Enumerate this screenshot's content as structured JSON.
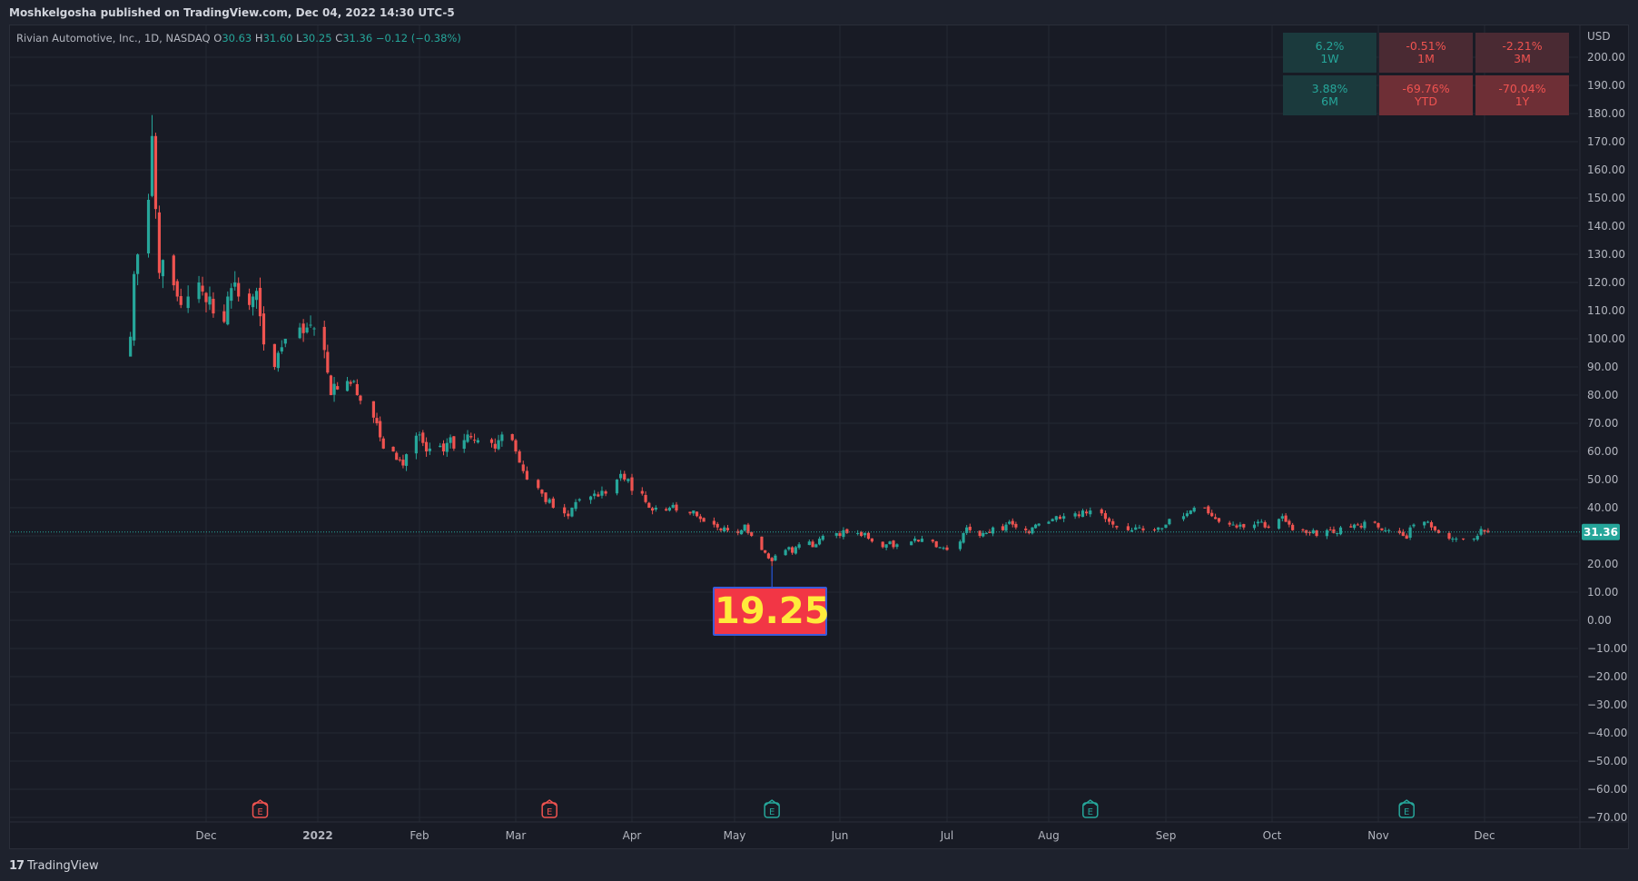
{
  "header": {
    "publisher_line": "Moshkelgosha published on TradingView.com, Dec 04, 2022 14:30 UTC-5"
  },
  "legend": {
    "symbol": "Rivian Automotive, Inc., 1D, NASDAQ",
    "o_label": "O",
    "o": "30.63",
    "h_label": "H",
    "h": "31.60",
    "l_label": "L",
    "l": "30.25",
    "c_label": "C",
    "c": "31.36",
    "change": "−0.12 (−0.38%)"
  },
  "performance": [
    {
      "value": "6.2%",
      "period": "1W",
      "state": "pos"
    },
    {
      "value": "-0.51%",
      "period": "1M",
      "state": "neg"
    },
    {
      "value": "-2.21%",
      "period": "3M",
      "state": "neg"
    },
    {
      "value": "3.88%",
      "period": "6M",
      "state": "pos"
    },
    {
      "value": "-69.76%",
      "period": "YTD",
      "state": "neg2"
    },
    {
      "value": "-70.04%",
      "period": "1Y",
      "state": "neg2"
    }
  ],
  "annotation": {
    "text": "19.25"
  },
  "footer": {
    "brand": "TradingView"
  },
  "colors": {
    "up": "#26a69a",
    "down": "#ef5350",
    "background": "#181b25",
    "grid": "#242833",
    "last_price_bg": "#26a69a",
    "annotation_bg": "#f23645",
    "annotation_text": "#ffeb3b"
  },
  "chart_data": {
    "type": "candlestick",
    "title": "Rivian Automotive, Inc., 1D, NASDAQ",
    "currency": "USD",
    "ylim": [
      -75,
      225
    ],
    "y_ticks": [
      200,
      190,
      180,
      170,
      160,
      150,
      140,
      130,
      120,
      110,
      100,
      90,
      80,
      70,
      60,
      50,
      40,
      30,
      20,
      10,
      0,
      -10,
      -20,
      -30,
      -40,
      -50,
      -60,
      -70
    ],
    "y_tick_labels": [
      "200.00",
      "190.00",
      "180.00",
      "170.00",
      "160.00",
      "150.00",
      "140.00",
      "130.00",
      "120.00",
      "110.00",
      "100.00",
      "90.00",
      "80.00",
      "70.00",
      "60.00",
      "50.00",
      "40.00",
      "30.00",
      "20.00",
      "10.00",
      "0.00",
      "−10.00",
      "−20.00",
      "−30.00",
      "−40.00",
      "−50.00",
      "−60.00",
      "−70.00"
    ],
    "x_labels": [
      "Dec",
      "2022",
      "Feb",
      "Mar",
      "Apr",
      "May",
      "Jun",
      "Jul",
      "Aug",
      "Sep",
      "Oct",
      "Nov",
      "Dec"
    ],
    "last_price": "31.36",
    "last_close": 31.36,
    "min_low": 19.25,
    "earnings_markers": [
      {
        "month": "Dec",
        "state": "down",
        "label": "E"
      },
      {
        "month": "Mar",
        "state": "down",
        "label": "E"
      },
      {
        "month": "May",
        "state": "up",
        "label": "E"
      },
      {
        "month": "Aug",
        "state": "up",
        "label": "E"
      },
      {
        "month": "Nov",
        "state": "up",
        "label": "E"
      }
    ],
    "close_path": [
      [
        "2021-11-10",
        100.73
      ],
      [
        "2021-11-11",
        122.99
      ],
      [
        "2021-11-12",
        129.95
      ],
      [
        "2021-11-15",
        149.36
      ],
      [
        "2021-11-16",
        172.01
      ],
      [
        "2021-11-17",
        146.07
      ],
      [
        "2021-11-18",
        123.38
      ],
      [
        "2021-11-19",
        128.0
      ],
      [
        "2021-11-22",
        119.0
      ],
      [
        "2021-11-23",
        115.0
      ],
      [
        "2021-11-24",
        112.0
      ],
      [
        "2021-11-26",
        115.0
      ],
      [
        "2021-11-29",
        120.0
      ],
      [
        "2021-11-30",
        116.78
      ],
      [
        "2021-12-01",
        113.0
      ],
      [
        "2021-12-02",
        115.0
      ],
      [
        "2021-12-03",
        109.0
      ],
      [
        "2021-12-06",
        106.0
      ],
      [
        "2021-12-07",
        115.0
      ],
      [
        "2021-12-08",
        118.0
      ],
      [
        "2021-12-09",
        120.0
      ],
      [
        "2021-12-10",
        115.0
      ],
      [
        "2021-12-13",
        112.0
      ],
      [
        "2021-12-14",
        115.0
      ],
      [
        "2021-12-15",
        117.0
      ],
      [
        "2021-12-16",
        108.0
      ],
      [
        "2021-12-17",
        98.0
      ],
      [
        "2021-12-20",
        90.0
      ],
      [
        "2021-12-21",
        95.0
      ],
      [
        "2021-12-22",
        97.0
      ],
      [
        "2021-12-23",
        100.0
      ],
      [
        "2021-12-27",
        104.0
      ],
      [
        "2021-12-28",
        102.0
      ],
      [
        "2021-12-29",
        104.0
      ],
      [
        "2021-12-30",
        105.0
      ],
      [
        "2021-12-31",
        103.69
      ],
      [
        "2022-01-03",
        96.0
      ],
      [
        "2022-01-04",
        88.0
      ],
      [
        "2022-01-05",
        80.0
      ],
      [
        "2022-01-06",
        84.0
      ],
      [
        "2022-01-07",
        82.0
      ],
      [
        "2022-01-10",
        85.0
      ],
      [
        "2022-01-11",
        84.0
      ],
      [
        "2022-01-12",
        85.0
      ],
      [
        "2022-01-13",
        80.0
      ],
      [
        "2022-01-14",
        78.0
      ],
      [
        "2022-01-18",
        72.0
      ],
      [
        "2022-01-19",
        70.0
      ],
      [
        "2022-01-20",
        65.0
      ],
      [
        "2022-01-21",
        61.0
      ],
      [
        "2022-01-24",
        60.0
      ],
      [
        "2022-01-25",
        57.0
      ],
      [
        "2022-01-26",
        57.0
      ],
      [
        "2022-01-27",
        55.0
      ],
      [
        "2022-01-28",
        59.0
      ],
      [
        "2022-01-31",
        65.57
      ],
      [
        "2022-02-01",
        66.0
      ],
      [
        "2022-02-02",
        63.0
      ],
      [
        "2022-02-03",
        60.0
      ],
      [
        "2022-02-04",
        61.0
      ],
      [
        "2022-02-07",
        62.0
      ],
      [
        "2022-02-08",
        60.0
      ],
      [
        "2022-02-09",
        63.0
      ],
      [
        "2022-02-10",
        65.0
      ],
      [
        "2022-02-11",
        61.0
      ],
      [
        "2022-02-14",
        64.0
      ],
      [
        "2022-02-15",
        66.0
      ],
      [
        "2022-02-16",
        65.0
      ],
      [
        "2022-02-17",
        64.0
      ],
      [
        "2022-02-18",
        64.0
      ],
      [
        "2022-02-22",
        63.0
      ],
      [
        "2022-02-23",
        61.0
      ],
      [
        "2022-02-24",
        64.0
      ],
      [
        "2022-02-25",
        66.0
      ],
      [
        "2022-02-28",
        64.0
      ],
      [
        "2022-03-01",
        60.0
      ],
      [
        "2022-03-02",
        56.0
      ],
      [
        "2022-03-03",
        53.0
      ],
      [
        "2022-03-04",
        50.0
      ],
      [
        "2022-03-07",
        47.0
      ],
      [
        "2022-03-08",
        45.0
      ],
      [
        "2022-03-09",
        42.0
      ],
      [
        "2022-03-10",
        43.0
      ],
      [
        "2022-03-11",
        40.0
      ],
      [
        "2022-03-14",
        38.0
      ],
      [
        "2022-03-15",
        37.0
      ],
      [
        "2022-03-16",
        40.0
      ],
      [
        "2022-03-17",
        42.0
      ],
      [
        "2022-03-18",
        43.0
      ],
      [
        "2022-03-21",
        44.0
      ],
      [
        "2022-03-22",
        45.0
      ],
      [
        "2022-03-23",
        44.0
      ],
      [
        "2022-03-24",
        46.0
      ],
      [
        "2022-03-25",
        45.0
      ],
      [
        "2022-03-28",
        50.0
      ],
      [
        "2022-03-29",
        52.0
      ],
      [
        "2022-03-30",
        50.0
      ],
      [
        "2022-03-31",
        50.24
      ],
      [
        "2022-04-01",
        46.0
      ],
      [
        "2022-04-04",
        45.0
      ],
      [
        "2022-04-05",
        42.0
      ],
      [
        "2022-04-06",
        40.0
      ],
      [
        "2022-04-07",
        39.0
      ],
      [
        "2022-04-08",
        40.0
      ],
      [
        "2022-04-11",
        39.0
      ],
      [
        "2022-04-12",
        40.0
      ],
      [
        "2022-04-13",
        41.0
      ],
      [
        "2022-04-14",
        39.0
      ],
      [
        "2022-04-18",
        38.0
      ],
      [
        "2022-04-19",
        39.0
      ],
      [
        "2022-04-20",
        37.0
      ],
      [
        "2022-04-21",
        36.0
      ],
      [
        "2022-04-22",
        35.0
      ],
      [
        "2022-04-25",
        34.0
      ],
      [
        "2022-04-26",
        33.0
      ],
      [
        "2022-04-27",
        32.0
      ],
      [
        "2022-04-28",
        33.0
      ],
      [
        "2022-04-29",
        32.0
      ],
      [
        "2022-05-02",
        31.0
      ],
      [
        "2022-05-03",
        32.0
      ],
      [
        "2022-05-04",
        34.0
      ],
      [
        "2022-05-05",
        31.0
      ],
      [
        "2022-05-06",
        30.0
      ],
      [
        "2022-05-09",
        25.0
      ],
      [
        "2022-05-10",
        24.0
      ],
      [
        "2022-05-11",
        22.0
      ],
      [
        "2022-05-12",
        21.0
      ],
      [
        "2022-05-13",
        23.0
      ],
      [
        "2022-05-16",
        25.0
      ],
      [
        "2022-05-17",
        26.0
      ],
      [
        "2022-05-18",
        24.0
      ],
      [
        "2022-05-19",
        26.0
      ],
      [
        "2022-05-20",
        27.0
      ],
      [
        "2022-05-23",
        28.0
      ],
      [
        "2022-05-24",
        26.0
      ],
      [
        "2022-05-25",
        27.0
      ],
      [
        "2022-05-26",
        29.0
      ],
      [
        "2022-05-27",
        30.0
      ],
      [
        "2022-05-31",
        31.0
      ],
      [
        "2022-06-01",
        30.0
      ],
      [
        "2022-06-02",
        32.0
      ],
      [
        "2022-06-03",
        31.0
      ],
      [
        "2022-06-06",
        31.0
      ],
      [
        "2022-06-07",
        30.0
      ],
      [
        "2022-06-08",
        31.0
      ],
      [
        "2022-06-09",
        29.0
      ],
      [
        "2022-06-10",
        28.0
      ],
      [
        "2022-06-13",
        26.0
      ],
      [
        "2022-06-14",
        27.0
      ],
      [
        "2022-06-15",
        28.0
      ],
      [
        "2022-06-16",
        26.0
      ],
      [
        "2022-06-17",
        27.0
      ],
      [
        "2022-06-21",
        28.0
      ],
      [
        "2022-06-22",
        29.0
      ],
      [
        "2022-06-23",
        28.0
      ],
      [
        "2022-06-24",
        29.0
      ],
      [
        "2022-06-27",
        28.0
      ],
      [
        "2022-06-28",
        26.0
      ],
      [
        "2022-06-29",
        26.0
      ],
      [
        "2022-06-30",
        25.74
      ],
      [
        "2022-07-01",
        25.0
      ],
      [
        "2022-07-05",
        28.0
      ],
      [
        "2022-07-06",
        31.0
      ],
      [
        "2022-07-07",
        33.0
      ],
      [
        "2022-07-08",
        32.0
      ],
      [
        "2022-07-11",
        30.0
      ],
      [
        "2022-07-12",
        31.0
      ],
      [
        "2022-07-13",
        31.0
      ],
      [
        "2022-07-14",
        31.0
      ],
      [
        "2022-07-15",
        33.0
      ],
      [
        "2022-07-18",
        32.0
      ],
      [
        "2022-07-19",
        34.0
      ],
      [
        "2022-07-20",
        35.0
      ],
      [
        "2022-07-21",
        34.0
      ],
      [
        "2022-07-22",
        33.0
      ],
      [
        "2022-07-25",
        32.0
      ],
      [
        "2022-07-26",
        31.0
      ],
      [
        "2022-07-27",
        33.0
      ],
      [
        "2022-07-28",
        34.0
      ],
      [
        "2022-07-29",
        34.32
      ],
      [
        "2022-08-01",
        35.0
      ],
      [
        "2022-08-02",
        36.0
      ],
      [
        "2022-08-03",
        37.0
      ],
      [
        "2022-08-04",
        36.0
      ],
      [
        "2022-08-05",
        37.0
      ],
      [
        "2022-08-08",
        38.0
      ],
      [
        "2022-08-09",
        37.0
      ],
      [
        "2022-08-10",
        39.0
      ],
      [
        "2022-08-11",
        38.0
      ],
      [
        "2022-08-12",
        39.0
      ],
      [
        "2022-08-15",
        38.0
      ],
      [
        "2022-08-16",
        36.0
      ],
      [
        "2022-08-17",
        35.0
      ],
      [
        "2022-08-18",
        34.0
      ],
      [
        "2022-08-19",
        33.0
      ],
      [
        "2022-08-22",
        32.0
      ],
      [
        "2022-08-23",
        32.0
      ],
      [
        "2022-08-24",
        33.0
      ],
      [
        "2022-08-25",
        33.0
      ],
      [
        "2022-08-26",
        32.0
      ],
      [
        "2022-08-29",
        32.0
      ],
      [
        "2022-08-30",
        33.0
      ],
      [
        "2022-08-31",
        32.73
      ],
      [
        "2022-09-01",
        34.0
      ],
      [
        "2022-09-02",
        36.0
      ],
      [
        "2022-09-06",
        37.0
      ],
      [
        "2022-09-07",
        38.0
      ],
      [
        "2022-09-08",
        39.0
      ],
      [
        "2022-09-09",
        40.0
      ],
      [
        "2022-09-12",
        40.0
      ],
      [
        "2022-09-13",
        38.0
      ],
      [
        "2022-09-14",
        37.0
      ],
      [
        "2022-09-15",
        36.0
      ],
      [
        "2022-09-16",
        35.0
      ],
      [
        "2022-09-19",
        34.0
      ],
      [
        "2022-09-20",
        34.0
      ],
      [
        "2022-09-21",
        33.0
      ],
      [
        "2022-09-22",
        34.0
      ],
      [
        "2022-09-23",
        33.0
      ],
      [
        "2022-09-26",
        34.0
      ],
      [
        "2022-09-27",
        35.0
      ],
      [
        "2022-09-28",
        35.0
      ],
      [
        "2022-09-29",
        33.0
      ],
      [
        "2022-09-30",
        32.91
      ],
      [
        "2022-10-03",
        36.0
      ],
      [
        "2022-10-04",
        37.0
      ],
      [
        "2022-10-05",
        35.0
      ],
      [
        "2022-10-06",
        34.0
      ],
      [
        "2022-10-07",
        32.0
      ],
      [
        "2022-10-10",
        32.0
      ],
      [
        "2022-10-11",
        31.0
      ],
      [
        "2022-10-12",
        31.0
      ],
      [
        "2022-10-13",
        32.0
      ],
      [
        "2022-10-14",
        30.0
      ],
      [
        "2022-10-17",
        32.0
      ],
      [
        "2022-10-18",
        32.0
      ],
      [
        "2022-10-19",
        31.0
      ],
      [
        "2022-10-20",
        31.0
      ],
      [
        "2022-10-21",
        33.0
      ],
      [
        "2022-10-24",
        33.0
      ],
      [
        "2022-10-25",
        34.0
      ],
      [
        "2022-10-26",
        34.0
      ],
      [
        "2022-10-27",
        33.0
      ],
      [
        "2022-10-28",
        35.0
      ],
      [
        "2022-10-31",
        34.64
      ],
      [
        "2022-11-01",
        33.0
      ],
      [
        "2022-11-02",
        32.0
      ],
      [
        "2022-11-03",
        32.0
      ],
      [
        "2022-11-04",
        32.0
      ],
      [
        "2022-11-07",
        31.0
      ],
      [
        "2022-11-08",
        30.0
      ],
      [
        "2022-11-09",
        29.0
      ],
      [
        "2022-11-10",
        33.0
      ],
      [
        "2022-11-11",
        34.0
      ],
      [
        "2022-11-14",
        35.0
      ],
      [
        "2022-11-15",
        35.0
      ],
      [
        "2022-11-16",
        33.0
      ],
      [
        "2022-11-17",
        32.0
      ],
      [
        "2022-11-18",
        31.0
      ],
      [
        "2022-11-21",
        29.0
      ],
      [
        "2022-11-22",
        29.0
      ],
      [
        "2022-11-23",
        29.0
      ],
      [
        "2022-11-25",
        29.0
      ],
      [
        "2022-11-28",
        29.0
      ],
      [
        "2022-11-29",
        30.0
      ],
      [
        "2022-11-30",
        32.46
      ],
      [
        "2022-12-01",
        31.48
      ],
      [
        "2022-12-02",
        31.36
      ]
    ]
  }
}
